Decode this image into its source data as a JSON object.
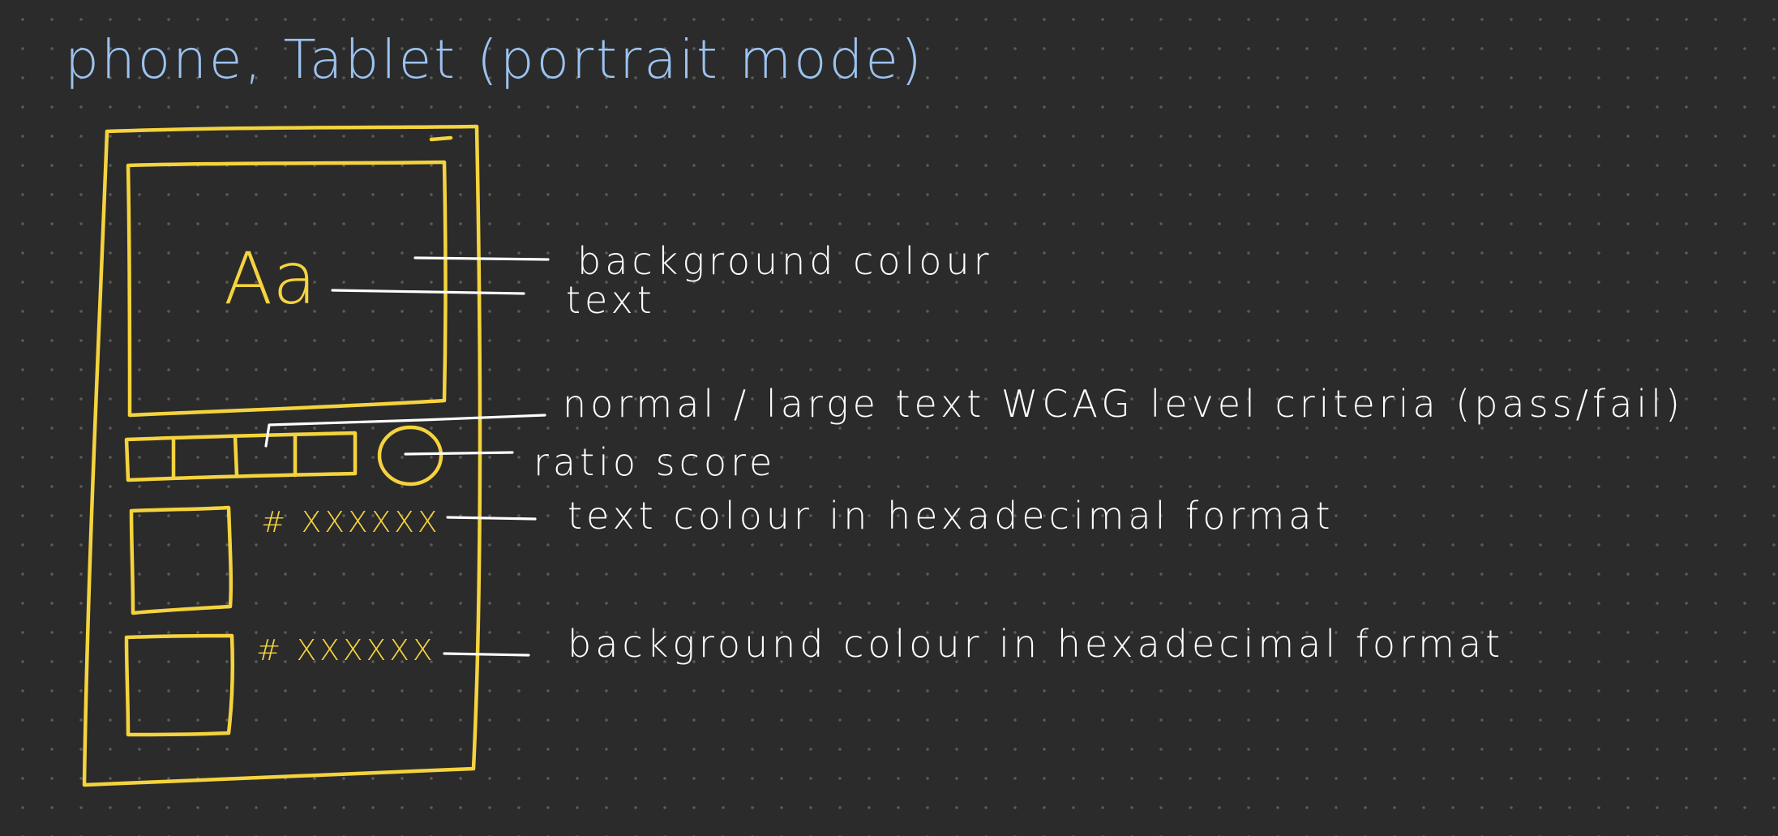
{
  "title": "phone, Tablet (portrait mode)",
  "preview": {
    "sample_text": "Aa"
  },
  "hex_values": {
    "text": "# XXXXXX",
    "background": "# XXXXXX"
  },
  "annotations": {
    "background_colour": "background colour",
    "text": "text",
    "wcag_criteria": "normal / large text WCAG level criteria (pass/fail)",
    "ratio_score": "ratio score",
    "text_hex": "text colour in hexadecimal format",
    "background_hex": "background colour in hexadecimal format"
  },
  "colors": {
    "canvas": "#2b2b2b",
    "dots": "#5a5a5a",
    "sketch": "#f5d33d",
    "title": "#9cc3f0",
    "notes": "#ffffff"
  }
}
